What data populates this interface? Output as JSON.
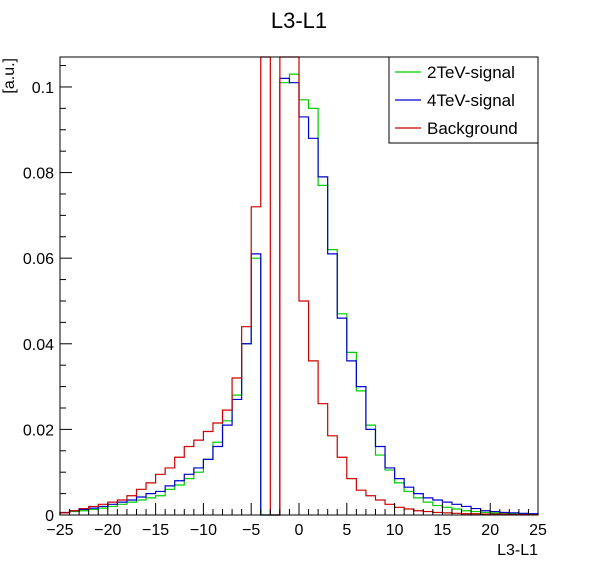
{
  "chart_data": {
    "type": "line",
    "drawstyle": "histogram-step",
    "title": "L3-L1",
    "xlabel": "L3-L1",
    "ylabel": "[a.u.]",
    "xlim": [
      -25,
      25
    ],
    "ylim": [
      0,
      0.107
    ],
    "bin_width": 1,
    "x_ticks": [
      -25,
      -20,
      -15,
      -10,
      -5,
      0,
      5,
      10,
      15,
      20,
      25
    ],
    "x_tick_labels": [
      "−25",
      "−20",
      "−15",
      "−10",
      "−5",
      "0",
      "5",
      "10",
      "15",
      "20",
      "25"
    ],
    "y_ticks": [
      0,
      0.02,
      0.04,
      0.06,
      0.08,
      0.1
    ],
    "y_tick_labels": [
      "0",
      "0.02",
      "0.04",
      "0.06",
      "0.08",
      "0.1"
    ],
    "legend_position": "top-right",
    "grid": false,
    "series": [
      {
        "name": "2TeV-signal",
        "color": "#00cc00",
        "values": [
          0.0005,
          0.0008,
          0.001,
          0.0013,
          0.0016,
          0.002,
          0.0025,
          0.003,
          0.0035,
          0.004,
          0.0045,
          0.006,
          0.007,
          0.0085,
          0.01,
          0.013,
          0.017,
          0.022,
          0.028,
          0.04,
          0.06,
          0,
          0,
          0.101,
          0.103,
          0.097,
          0.095,
          0.077,
          0.062,
          0.047,
          0.038,
          0.029,
          0.021,
          0.014,
          0.0105,
          0.0075,
          0.0055,
          0.004,
          0.003,
          0.0022,
          0.0018,
          0.0014,
          0.001,
          0.0008,
          0.0006,
          0.0005,
          0.0004,
          0.0003,
          0.0002,
          0.0002
        ]
      },
      {
        "name": "4TeV-signal",
        "color": "#0000cc",
        "values": [
          0.0006,
          0.001,
          0.0013,
          0.0016,
          0.002,
          0.0025,
          0.003,
          0.0035,
          0.0042,
          0.005,
          0.0055,
          0.0068,
          0.008,
          0.0095,
          0.011,
          0.013,
          0.016,
          0.021,
          0.027,
          0.04,
          0.061,
          0,
          0,
          0.102,
          0.101,
          0.093,
          0.088,
          0.079,
          0.061,
          0.046,
          0.036,
          0.03,
          0.02,
          0.016,
          0.011,
          0.0085,
          0.0065,
          0.005,
          0.004,
          0.0035,
          0.003,
          0.0025,
          0.002,
          0.0015,
          0.001,
          0.0008,
          0.0006,
          0.0005,
          0.0004,
          0.0003
        ]
      },
      {
        "name": "Background",
        "color": "#cc0000",
        "values": [
          0.0005,
          0.001,
          0.0015,
          0.002,
          0.0025,
          0.003,
          0.0035,
          0.0045,
          0.006,
          0.0075,
          0.0095,
          0.011,
          0.0135,
          0.016,
          0.0175,
          0.0195,
          0.0215,
          0.0245,
          0.032,
          0.044,
          0.072,
          0.11,
          0,
          0.11,
          0.11,
          0.05,
          0.036,
          0.026,
          0.0185,
          0.0135,
          0.0085,
          0.0058,
          0.0045,
          0.0035,
          0.0025,
          0.0018,
          0.0014,
          0.001,
          0.0008,
          0.0006,
          0.0005,
          0.0004,
          0.0003,
          0.0003,
          0.0002,
          0.0002,
          0.0002,
          0.0001,
          0.0001,
          0.0001
        ]
      }
    ]
  }
}
